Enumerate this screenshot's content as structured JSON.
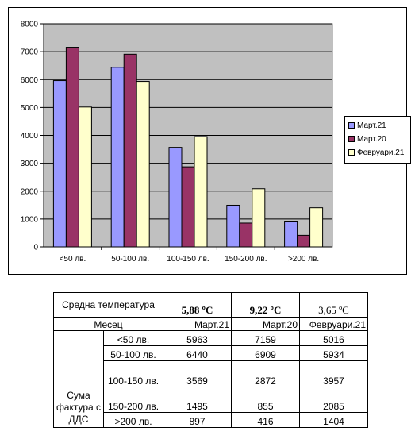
{
  "chart_data": {
    "type": "bar",
    "categories": [
      "<50 лв.",
      "50-100 лв.",
      "100-150 лв.",
      "150-200 лв.",
      ">200 лв."
    ],
    "series": [
      {
        "name": "Март.21",
        "values": [
          5963,
          6440,
          3569,
          1495,
          897
        ],
        "color": "#9999ff"
      },
      {
        "name": "Март.20",
        "values": [
          7159,
          6909,
          2872,
          855,
          416
        ],
        "color": "#993366"
      },
      {
        "name": "Февруари.21",
        "values": [
          5016,
          5934,
          3957,
          2085,
          1404
        ],
        "color": "#ffffcc"
      }
    ],
    "ylim": [
      0,
      8000
    ],
    "yticks": [
      "0",
      "1000",
      "2000",
      "3000",
      "4000",
      "5000",
      "6000",
      "7000",
      "8000"
    ],
    "grid": true,
    "legend": "right",
    "plot_bg": "#c0c0c0"
  },
  "table": {
    "temp_label": "Средна температура",
    "temps": [
      "5,88 ºC",
      "9,22 ºC",
      "3,65 ºC"
    ],
    "month_label": "Месец",
    "months": [
      "Март.21",
      "Март.20",
      "Февруари.21"
    ],
    "group_label": "Сума фактура с ДДС",
    "rows": [
      {
        "label": "<50 лв.",
        "values": [
          "5963",
          "7159",
          "5016"
        ]
      },
      {
        "label": "50-100 лв.",
        "values": [
          "6440",
          "6909",
          "5934"
        ]
      },
      {
        "label": "100-150 лв.",
        "values": [
          "3569",
          "2872",
          "3957"
        ]
      },
      {
        "label": "150-200 лв.",
        "values": [
          "1495",
          "855",
          "2085"
        ]
      },
      {
        "label": ">200 лв.",
        "values": [
          "897",
          "416",
          "1404"
        ]
      }
    ]
  }
}
